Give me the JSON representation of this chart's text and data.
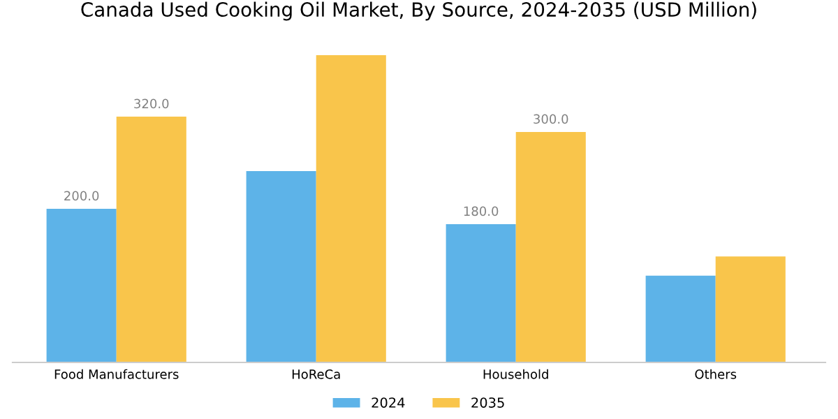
{
  "chart_data": {
    "type": "bar",
    "title": "Canada Used Cooking Oil Market, By Source, 2024-2035 (USD Million)",
    "categories": [
      "Food Manufacturers",
      "HoReCa",
      "Household",
      "Others"
    ],
    "series": [
      {
        "name": "2024",
        "color": "#5db3e8",
        "values": [
          200,
          249,
          180,
          113
        ],
        "value_labels": [
          "200.0",
          null,
          "180.0",
          null
        ]
      },
      {
        "name": "2035",
        "color": "#f9c54b",
        "values": [
          320,
          400,
          300,
          138
        ],
        "value_labels": [
          "320.0",
          null,
          "300.0",
          null
        ]
      }
    ],
    "grid": false,
    "legend": "bottom",
    "tick_labels": "x"
  }
}
